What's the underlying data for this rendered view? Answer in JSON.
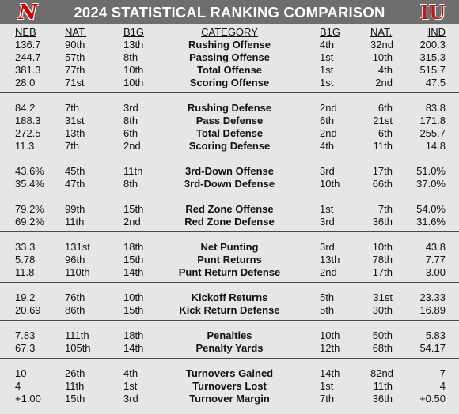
{
  "title": "2024 STATISTICAL RANKING COMPARISON",
  "logos": {
    "left": "N",
    "right": "IU"
  },
  "headers": {
    "neb": "NEB",
    "nat": "NAT.",
    "b1g": "B1G",
    "category": "CATEGORY",
    "r_b1g": "B1G",
    "r_nat": "NAT.",
    "ind": "IND"
  },
  "groups": [
    {
      "rows": [
        {
          "neb": "136.7",
          "neb_nat": "90th",
          "neb_b1g": "13th",
          "category": "Rushing Offense",
          "ind_b1g": "4th",
          "ind_nat": "32nd",
          "ind": "200.3"
        },
        {
          "neb": "244.7",
          "neb_nat": "57th",
          "neb_b1g": "8th",
          "category": "Passing Offense",
          "ind_b1g": "1st",
          "ind_nat": "10th",
          "ind": "315.3"
        },
        {
          "neb": "381.3",
          "neb_nat": "77th",
          "neb_b1g": "10th",
          "category": "Total Offense",
          "ind_b1g": "1st",
          "ind_nat": "4th",
          "ind": "515.7"
        },
        {
          "neb": "28.0",
          "neb_nat": "71st",
          "neb_b1g": "10th",
          "category": "Scoring Offense",
          "ind_b1g": "1st",
          "ind_nat": "2nd",
          "ind": "47.5"
        }
      ]
    },
    {
      "rows": [
        {
          "neb": "84.2",
          "neb_nat": "7th",
          "neb_b1g": "3rd",
          "category": "Rushing Defense",
          "ind_b1g": "2nd",
          "ind_nat": "6th",
          "ind": "83.8"
        },
        {
          "neb": "188.3",
          "neb_nat": "31st",
          "neb_b1g": "8th",
          "category": "Pass Defense",
          "ind_b1g": "6th",
          "ind_nat": "21st",
          "ind": "171.8"
        },
        {
          "neb": "272.5",
          "neb_nat": "13th",
          "neb_b1g": "6th",
          "category": "Total Defense",
          "ind_b1g": "2nd",
          "ind_nat": "6th",
          "ind": "255.7"
        },
        {
          "neb": "11.3",
          "neb_nat": "7th",
          "neb_b1g": "2nd",
          "category": "Scoring Defense",
          "ind_b1g": "4th",
          "ind_nat": "11th",
          "ind": "14.8"
        }
      ]
    },
    {
      "rows": [
        {
          "neb": "43.6%",
          "neb_nat": "45th",
          "neb_b1g": "11th",
          "category": "3rd-Down Offense",
          "ind_b1g": "3rd",
          "ind_nat": "17th",
          "ind": "51.0%"
        },
        {
          "neb": "35.4%",
          "neb_nat": "47th",
          "neb_b1g": "8th",
          "category": "3rd-Down Defense",
          "ind_b1g": "10th",
          "ind_nat": "66th",
          "ind": "37.0%"
        }
      ]
    },
    {
      "rows": [
        {
          "neb": "79.2%",
          "neb_nat": "99th",
          "neb_b1g": "15th",
          "category": "Red Zone Offense",
          "ind_b1g": "1st",
          "ind_nat": "7th",
          "ind": "54.0%"
        },
        {
          "neb": "69.2%",
          "neb_nat": "11th",
          "neb_b1g": "2nd",
          "category": "Red Zone Defense",
          "ind_b1g": "3rd",
          "ind_nat": "36th",
          "ind": "31.6%"
        }
      ]
    },
    {
      "rows": [
        {
          "neb": "33.3",
          "neb_nat": "131st",
          "neb_b1g": "18th",
          "category": "Net Punting",
          "ind_b1g": "3rd",
          "ind_nat": "10th",
          "ind": "43.8"
        },
        {
          "neb": "5.78",
          "neb_nat": "96th",
          "neb_b1g": "15th",
          "category": "Punt Returns",
          "ind_b1g": "13th",
          "ind_nat": "78th",
          "ind": "7.77"
        },
        {
          "neb": "11.8",
          "neb_nat": "110th",
          "neb_b1g": "14th",
          "category": "Punt Return Defense",
          "ind_b1g": "2nd",
          "ind_nat": "17th",
          "ind": "3.00"
        }
      ]
    },
    {
      "rows": [
        {
          "neb": "19.2",
          "neb_nat": "76th",
          "neb_b1g": "10th",
          "category": "Kickoff Returns",
          "ind_b1g": "5th",
          "ind_nat": "31st",
          "ind": "23.33"
        },
        {
          "neb": "20.69",
          "neb_nat": "86th",
          "neb_b1g": "15th",
          "category": "Kick Return Defense",
          "ind_b1g": "5th",
          "ind_nat": "30th",
          "ind": "16.89"
        }
      ]
    },
    {
      "rows": [
        {
          "neb": "7.83",
          "neb_nat": "111th",
          "neb_b1g": "18th",
          "category": "Penalties",
          "ind_b1g": "10th",
          "ind_nat": "50th",
          "ind": "5.83"
        },
        {
          "neb": "67.3",
          "neb_nat": "105th",
          "neb_b1g": "14th",
          "category": "Penalty Yards",
          "ind_b1g": "12th",
          "ind_nat": "68th",
          "ind": "54.17"
        }
      ]
    },
    {
      "rows": [
        {
          "neb": "10",
          "neb_nat": "26th",
          "neb_b1g": "4th",
          "category": "Turnovers Gained",
          "ind_b1g": "14th",
          "ind_nat": "82nd",
          "ind": "7"
        },
        {
          "neb": "4",
          "neb_nat": "11th",
          "neb_b1g": "1st",
          "category": "Turnovers Lost",
          "ind_b1g": "1st",
          "ind_nat": "11th",
          "ind": "4"
        },
        {
          "neb": "+1.00",
          "neb_nat": "15th",
          "neb_b1g": "3rd",
          "category": "Turnover Margin",
          "ind_b1g": "7th",
          "ind_nat": "36th",
          "ind": "+0.50"
        }
      ]
    }
  ]
}
